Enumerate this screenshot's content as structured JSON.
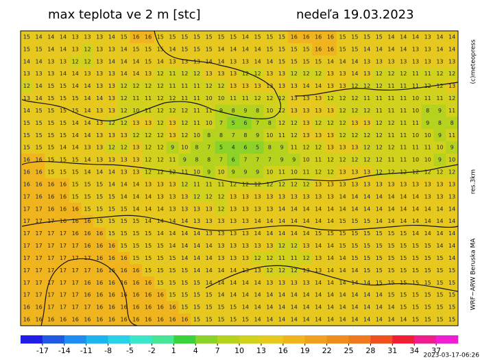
{
  "header": {
    "title": "max teplota ve 2 m [stc]",
    "date": "nedeľa 19.03.2023"
  },
  "side_labels": [
    "(c)meteopress",
    "res.3km",
    "WRF−ARW Beruska MA"
  ],
  "timestamp": "2023-03-17-06:26",
  "colorbar": {
    "min": -20,
    "max": 40,
    "step": 3,
    "colors": [
      "#1e1ee6",
      "#1e5ae6",
      "#1e8cf0",
      "#1eb4f0",
      "#28d2e6",
      "#3ce6c8",
      "#46e696",
      "#3cd23c",
      "#8cd228",
      "#b4d21e",
      "#d2d21e",
      "#e6c81e",
      "#f0b41e",
      "#f0a01e",
      "#f08c1e",
      "#f0781e",
      "#f0501e",
      "#f01e32",
      "#f01e8c",
      "#f01ed2"
    ],
    "ticks": [
      -17,
      -14,
      -11,
      -8,
      -5,
      -2,
      1,
      4,
      7,
      10,
      13,
      16,
      19,
      22,
      25,
      28,
      31,
      34,
      37
    ]
  },
  "map": {
    "rows": [
      [
        15,
        14,
        14,
        14,
        13,
        13,
        13,
        14,
        15,
        16,
        16,
        15,
        15,
        15,
        15,
        15,
        15,
        15,
        14,
        15,
        15,
        15,
        16,
        16,
        16,
        16,
        15,
        15,
        15,
        15,
        14,
        14,
        14,
        13,
        14,
        14
      ],
      [
        15,
        15,
        14,
        14,
        13,
        12,
        13,
        13,
        14,
        15,
        15,
        15,
        14,
        15,
        15,
        15,
        14,
        14,
        14,
        14,
        15,
        15,
        15,
        15,
        16,
        16,
        15,
        15,
        14,
        14,
        14,
        14,
        13,
        13,
        14,
        14
      ],
      [
        14,
        14,
        13,
        13,
        12,
        12,
        13,
        14,
        14,
        14,
        15,
        14,
        13,
        13,
        13,
        14,
        14,
        13,
        13,
        14,
        14,
        15,
        15,
        15,
        15,
        14,
        14,
        14,
        13,
        13,
        13,
        13,
        13,
        13,
        13,
        13
      ],
      [
        13,
        13,
        13,
        14,
        14,
        13,
        13,
        13,
        14,
        14,
        13,
        12,
        11,
        12,
        12,
        13,
        13,
        13,
        12,
        12,
        13,
        13,
        12,
        12,
        12,
        13,
        13,
        14,
        13,
        12,
        12,
        12,
        11,
        11,
        12,
        12
      ],
      [
        12,
        14,
        15,
        15,
        14,
        14,
        13,
        13,
        12,
        12,
        12,
        12,
        11,
        11,
        11,
        12,
        12,
        13,
        13,
        13,
        13,
        13,
        13,
        14,
        14,
        13,
        13,
        12,
        12,
        12,
        11,
        11,
        11,
        12,
        12,
        13
      ],
      [
        13,
        14,
        15,
        15,
        15,
        14,
        14,
        13,
        12,
        11,
        11,
        12,
        12,
        11,
        11,
        10,
        10,
        11,
        11,
        12,
        12,
        12,
        13,
        13,
        13,
        12,
        12,
        12,
        11,
        11,
        11,
        11,
        10,
        11,
        11,
        12
      ],
      [
        14,
        15,
        15,
        15,
        15,
        14,
        13,
        13,
        12,
        10,
        11,
        12,
        12,
        12,
        11,
        11,
        9,
        8,
        9,
        8,
        10,
        12,
        13,
        13,
        13,
        13,
        12,
        12,
        12,
        11,
        11,
        11,
        10,
        8,
        9,
        11
      ],
      [
        15,
        15,
        15,
        15,
        14,
        14,
        13,
        12,
        12,
        13,
        13,
        12,
        13,
        12,
        11,
        10,
        7,
        5,
        6,
        7,
        8,
        12,
        12,
        13,
        12,
        12,
        12,
        13,
        13,
        12,
        12,
        11,
        11,
        9,
        8,
        8
      ],
      [
        15,
        15,
        15,
        15,
        14,
        14,
        13,
        13,
        13,
        12,
        12,
        12,
        13,
        12,
        10,
        8,
        8,
        7,
        8,
        9,
        10,
        11,
        12,
        13,
        13,
        13,
        12,
        12,
        12,
        12,
        11,
        11,
        10,
        10,
        9,
        11
      ],
      [
        15,
        15,
        15,
        14,
        14,
        13,
        13,
        12,
        12,
        13,
        12,
        12,
        9,
        10,
        8,
        7,
        5,
        4,
        6,
        5,
        8,
        9,
        11,
        12,
        12,
        13,
        13,
        13,
        12,
        12,
        12,
        11,
        11,
        11,
        10,
        9
      ],
      [
        16,
        16,
        15,
        15,
        15,
        14,
        13,
        13,
        13,
        13,
        12,
        12,
        11,
        9,
        8,
        8,
        7,
        6,
        7,
        7,
        7,
        9,
        9,
        10,
        11,
        12,
        12,
        12,
        12,
        12,
        11,
        11,
        10,
        10,
        9,
        10
      ],
      [
        16,
        16,
        15,
        15,
        15,
        14,
        14,
        14,
        13,
        13,
        12,
        12,
        12,
        11,
        10,
        9,
        10,
        9,
        9,
        9,
        10,
        11,
        10,
        11,
        12,
        12,
        13,
        13,
        13,
        12,
        12,
        12,
        12,
        12,
        12,
        12
      ],
      [
        16,
        16,
        16,
        16,
        15,
        15,
        15,
        14,
        14,
        14,
        13,
        13,
        13,
        12,
        11,
        11,
        11,
        12,
        12,
        12,
        12,
        12,
        12,
        12,
        13,
        13,
        13,
        13,
        13,
        13,
        13,
        13,
        13,
        13,
        13,
        13
      ],
      [
        17,
        16,
        16,
        16,
        15,
        15,
        15,
        15,
        14,
        14,
        14,
        13,
        13,
        13,
        12,
        12,
        12,
        13,
        13,
        13,
        13,
        13,
        13,
        13,
        13,
        13,
        14,
        14,
        14,
        14,
        14,
        14,
        14,
        13,
        13,
        13
      ],
      [
        17,
        17,
        16,
        16,
        16,
        15,
        15,
        15,
        15,
        14,
        14,
        14,
        13,
        13,
        13,
        13,
        12,
        13,
        13,
        13,
        13,
        14,
        14,
        14,
        14,
        14,
        14,
        14,
        14,
        14,
        14,
        14,
        14,
        14,
        14,
        14
      ],
      [
        17,
        17,
        17,
        16,
        16,
        16,
        15,
        15,
        15,
        15,
        14,
        14,
        14,
        14,
        13,
        13,
        13,
        13,
        13,
        14,
        14,
        14,
        14,
        14,
        14,
        14,
        15,
        15,
        15,
        14,
        14,
        14,
        14,
        14,
        14,
        14
      ],
      [
        17,
        17,
        17,
        17,
        16,
        16,
        16,
        15,
        15,
        15,
        15,
        14,
        14,
        14,
        14,
        13,
        13,
        13,
        13,
        14,
        14,
        14,
        14,
        14,
        15,
        15,
        15,
        15,
        15,
        15,
        15,
        15,
        14,
        14,
        14,
        14
      ],
      [
        17,
        17,
        17,
        17,
        17,
        16,
        16,
        16,
        15,
        15,
        15,
        15,
        14,
        14,
        14,
        14,
        13,
        13,
        13,
        13,
        13,
        12,
        12,
        13,
        14,
        14,
        15,
        15,
        15,
        15,
        15,
        15,
        15,
        15,
        14,
        14
      ],
      [
        17,
        17,
        17,
        17,
        17,
        17,
        16,
        16,
        16,
        15,
        15,
        15,
        15,
        14,
        14,
        14,
        13,
        13,
        13,
        12,
        12,
        11,
        11,
        12,
        13,
        14,
        14,
        15,
        15,
        15,
        15,
        15,
        15,
        15,
        15,
        14
      ],
      [
        17,
        17,
        17,
        17,
        17,
        17,
        16,
        16,
        16,
        16,
        15,
        15,
        15,
        15,
        14,
        14,
        14,
        14,
        13,
        13,
        12,
        12,
        12,
        13,
        13,
        14,
        14,
        14,
        15,
        15,
        15,
        15,
        15,
        15,
        15,
        15
      ],
      [
        17,
        17,
        17,
        17,
        17,
        16,
        16,
        16,
        16,
        16,
        16,
        15,
        15,
        15,
        15,
        14,
        14,
        14,
        14,
        14,
        13,
        13,
        13,
        13,
        14,
        14,
        14,
        14,
        14,
        15,
        15,
        15,
        15,
        15,
        15,
        15
      ],
      [
        17,
        17,
        17,
        17,
        17,
        16,
        16,
        16,
        16,
        16,
        16,
        16,
        15,
        15,
        15,
        15,
        14,
        14,
        14,
        14,
        14,
        14,
        14,
        14,
        14,
        14,
        14,
        14,
        14,
        14,
        15,
        15,
        15,
        15,
        15,
        15
      ],
      [
        16,
        16,
        17,
        17,
        17,
        17,
        16,
        16,
        16,
        16,
        16,
        16,
        16,
        15,
        15,
        15,
        15,
        15,
        14,
        14,
        14,
        14,
        14,
        14,
        14,
        14,
        14,
        14,
        14,
        14,
        14,
        15,
        15,
        15,
        15,
        15
      ],
      [
        16,
        16,
        16,
        16,
        16,
        16,
        16,
        16,
        16,
        16,
        16,
        16,
        16,
        16,
        15,
        15,
        15,
        15,
        15,
        14,
        14,
        14,
        14,
        14,
        14,
        14,
        14,
        14,
        14,
        14,
        14,
        14,
        15,
        15,
        15,
        15
      ]
    ]
  }
}
